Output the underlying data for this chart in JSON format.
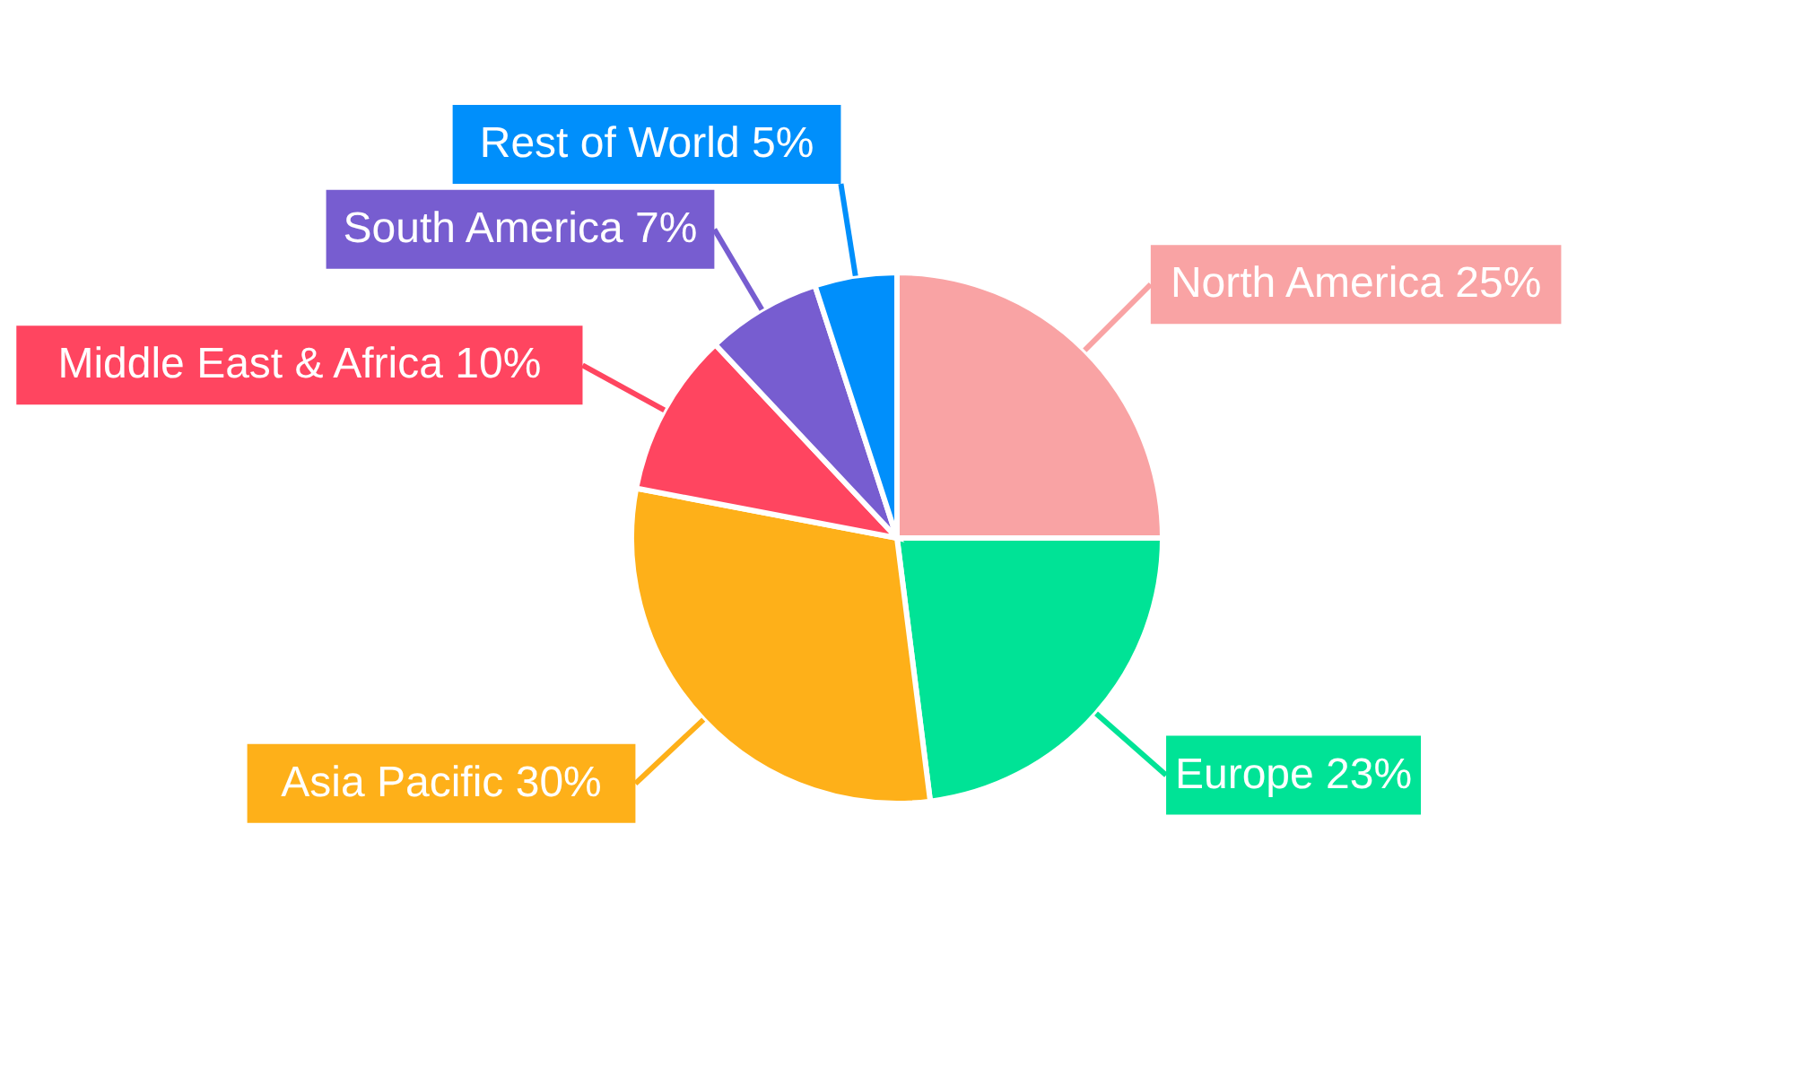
{
  "chart_data": {
    "type": "pie",
    "categories": [
      "North America",
      "Europe",
      "Asia Pacific",
      "Middle East & Africa",
      "South America",
      "Rest of World"
    ],
    "values": [
      25,
      23,
      30,
      10,
      7,
      5
    ],
    "colors": [
      "#f9a3a4",
      "#00e396",
      "#feb019",
      "#ff4560",
      "#775dd0",
      "#008ffb"
    ],
    "value_labels": [
      "25%",
      "23%",
      "30%",
      "10%",
      "7%",
      "5%"
    ]
  }
}
